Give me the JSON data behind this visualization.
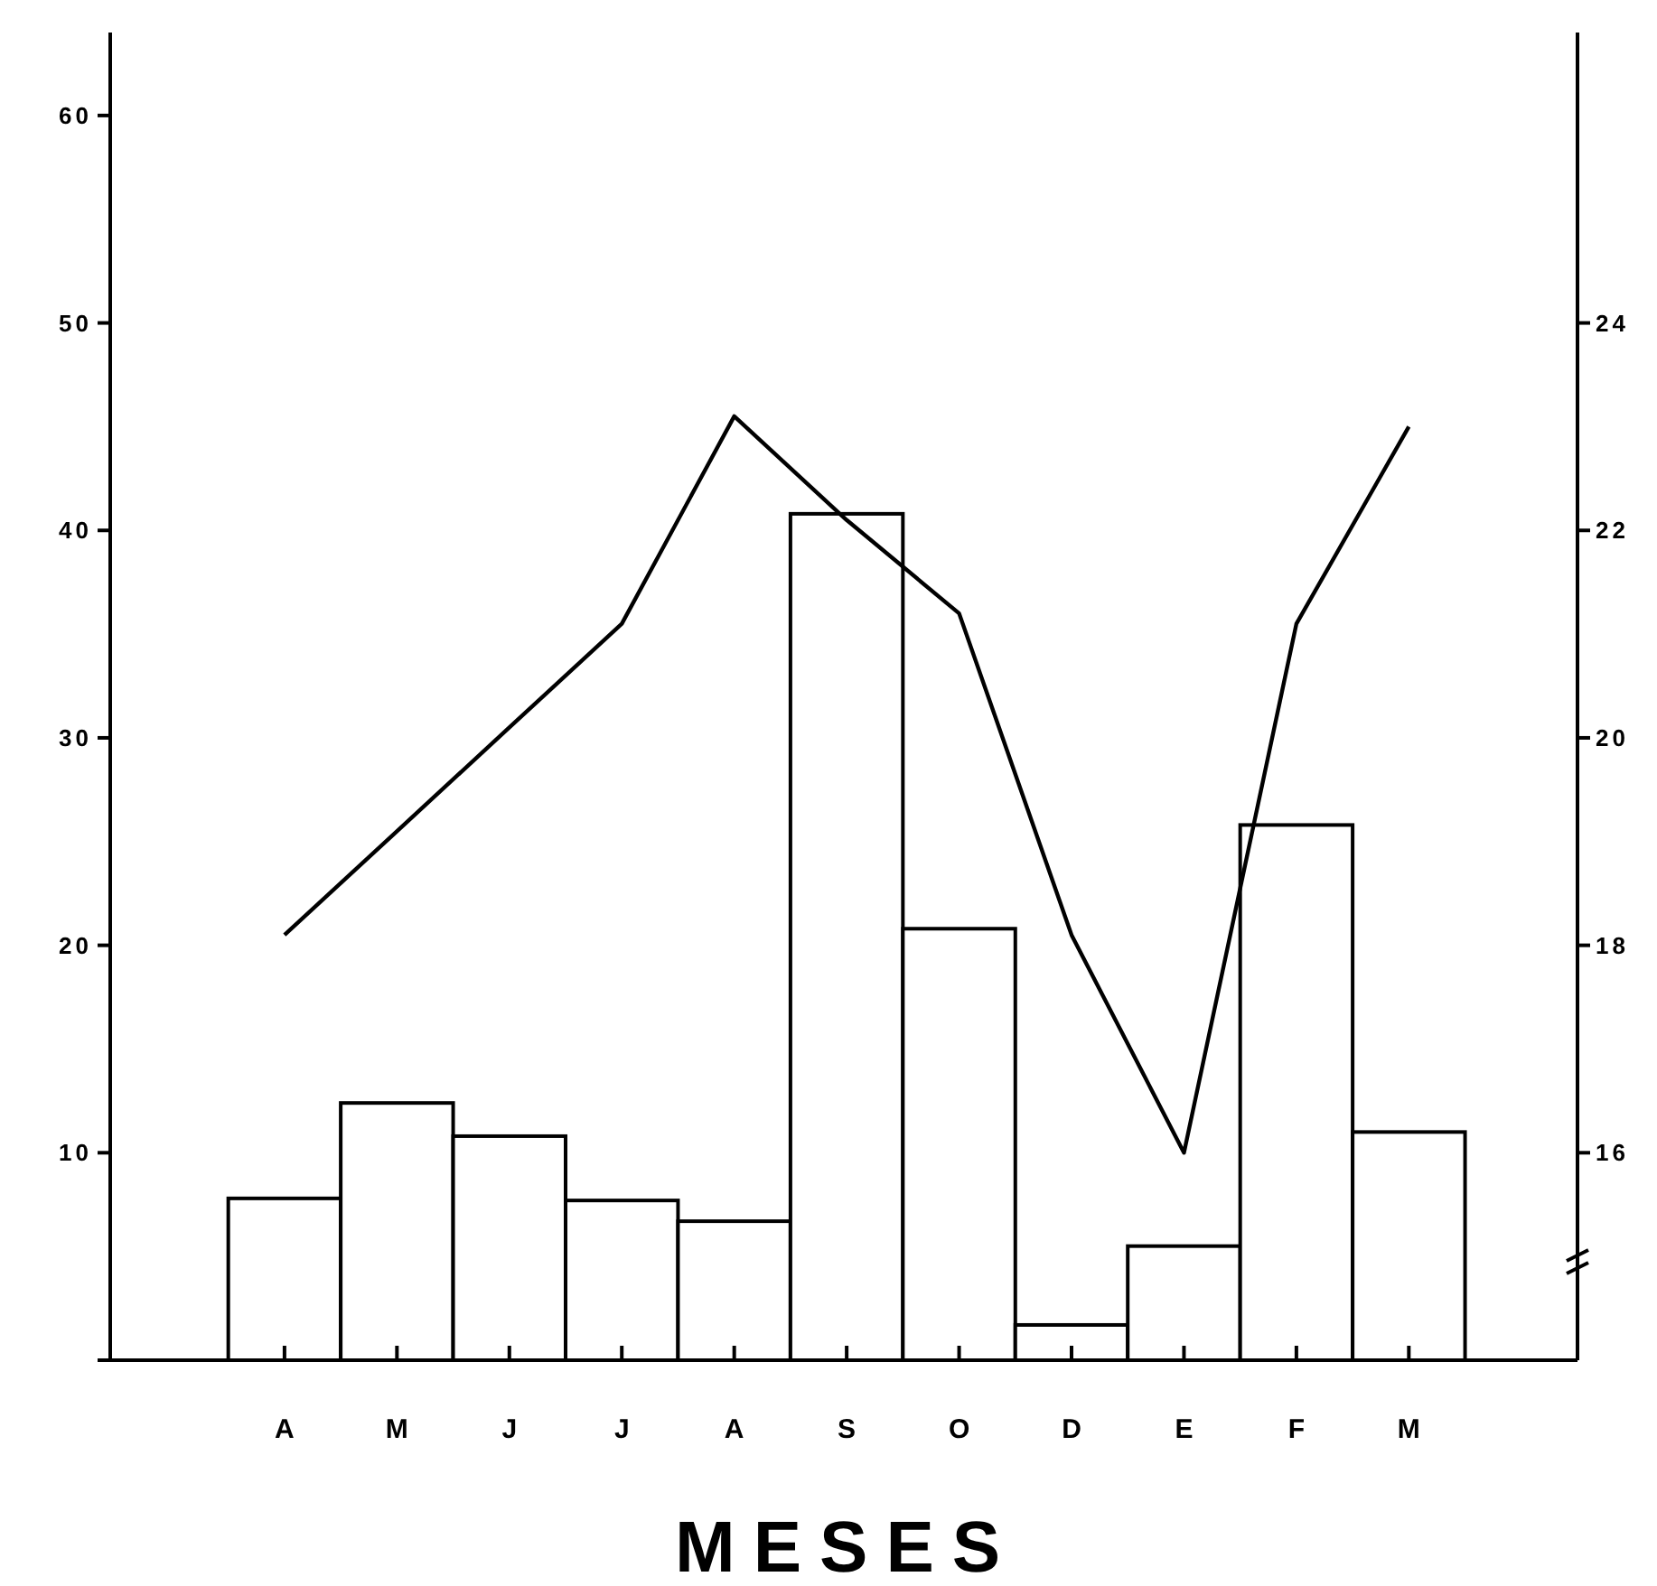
{
  "chart_data": {
    "type": "bar",
    "xlabel": "MESES",
    "categories": [
      "A",
      "M",
      "J",
      "J",
      "A",
      "S",
      "O",
      "D",
      "E",
      "F",
      "M"
    ],
    "series": [
      {
        "color": "#ffffff",
        "values": [
          7.8,
          12.4,
          10.8,
          7.7,
          6.7,
          40.8,
          20.8,
          1.7,
          5.5,
          25.8,
          11.0
        ]
      },
      {
        "type": "line",
        "axis": "y2",
        "color": "#000000",
        "values": [
          18.1,
          19.1,
          20.1,
          21.1,
          23.1,
          22.1,
          21.2,
          18.1,
          16.0,
          21.1,
          23.0
        ]
      }
    ],
    "ylim": [
      0,
      64
    ],
    "yticks": [
      {
        "value": 0,
        "label": null
      },
      10,
      20,
      30,
      40,
      50,
      60
    ],
    "y2lim": [
      14,
      26.8
    ],
    "y2ticks": [
      16,
      18,
      20,
      22,
      24
    ],
    "grid": false
  }
}
